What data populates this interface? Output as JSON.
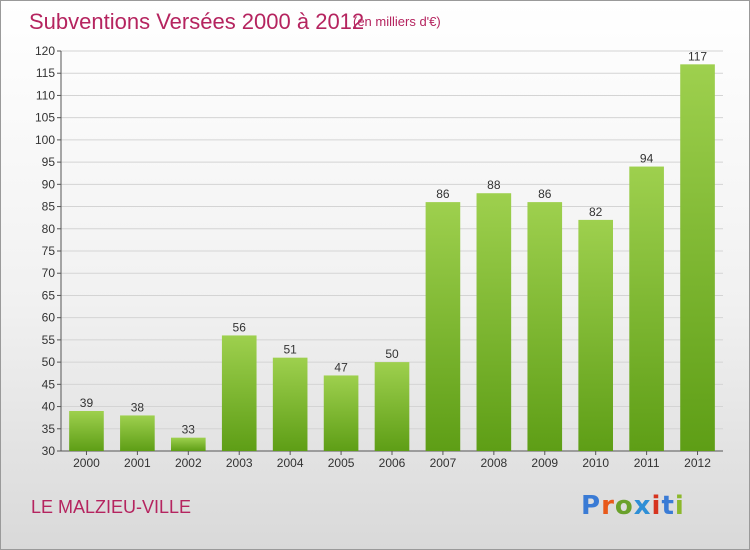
{
  "header": {
    "title": "Subventions Versées 2000 à 2012",
    "subtitle": "(en milliers d'€)"
  },
  "footer": {
    "commune": "LE MALZIEU-VILLE"
  },
  "logo": {
    "text": "Proxiti",
    "letters": [
      "P",
      "r",
      "o",
      "x",
      "i",
      "t",
      "i"
    ],
    "letter_colors": [
      "#3a7bd5",
      "#e8591a",
      "#6aa12b",
      "#2e8fd6",
      "#d6341f",
      "#3a7bd5",
      "#8cb82c"
    ]
  },
  "chart_data": {
    "type": "bar",
    "categories": [
      "2000",
      "2001",
      "2002",
      "2003",
      "2004",
      "2005",
      "2006",
      "2007",
      "2008",
      "2009",
      "2010",
      "2011",
      "2012"
    ],
    "values": [
      39,
      38,
      33,
      56,
      51,
      47,
      50,
      86,
      88,
      86,
      82,
      94,
      117
    ],
    "ylim": [
      30,
      120
    ],
    "yticks": [
      30,
      35,
      40,
      45,
      50,
      55,
      60,
      65,
      70,
      75,
      80,
      85,
      90,
      95,
      100,
      105,
      110,
      115,
      120
    ],
    "grid": true,
    "bar_color_top": "#9ed04e",
    "bar_color_bottom": "#5e9e16"
  }
}
